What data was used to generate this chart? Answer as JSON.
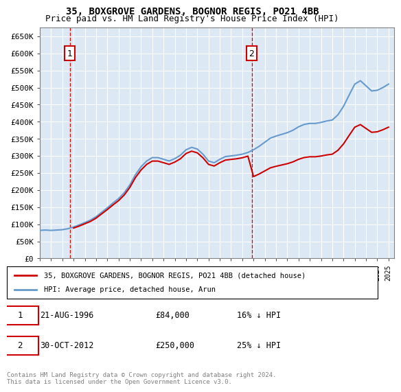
{
  "title1": "35, BOXGROVE GARDENS, BOGNOR REGIS, PO21 4BB",
  "title2": "Price paid vs. HM Land Registry's House Price Index (HPI)",
  "legend_line1": "35, BOXGROVE GARDENS, BOGNOR REGIS, PO21 4BB (detached house)",
  "legend_line2": "HPI: Average price, detached house, Arun",
  "hpi_color": "#6699cc",
  "price_color": "#cc0000",
  "annotation_color": "#cc0000",
  "background_color": "#dde8f5",
  "sale1_label": "1",
  "sale1_date": "21-AUG-1996",
  "sale1_price": 84000,
  "sale1_text": "21-AUG-1996        £84,000        16% ↓ HPI",
  "sale2_label": "2",
  "sale2_date": "30-OCT-2012",
  "sale2_price": 250000,
  "sale2_text": "30-OCT-2012        £250,000        25% ↓ HPI",
  "footer": "Contains HM Land Registry data © Crown copyright and database right 2024.\nThis data is licensed under the Open Government Licence v3.0.",
  "ylim": [
    0,
    675000
  ],
  "yticks": [
    0,
    50000,
    100000,
    150000,
    200000,
    250000,
    300000,
    350000,
    400000,
    450000,
    500000,
    550000,
    600000,
    650000
  ],
  "xlim_start": 1994.0,
  "xlim_end": 2025.5
}
